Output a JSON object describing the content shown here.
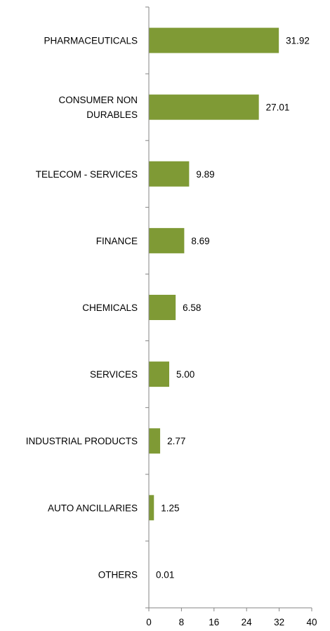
{
  "chart_data": {
    "type": "bar",
    "orientation": "horizontal",
    "categories": [
      [
        "PHARMACEUTICALS"
      ],
      [
        "CONSUMER NON",
        "DURABLES"
      ],
      [
        "TELECOM - SERVICES"
      ],
      [
        "FINANCE"
      ],
      [
        "CHEMICALS"
      ],
      [
        "SERVICES"
      ],
      [
        "INDUSTRIAL PRODUCTS"
      ],
      [
        "AUTO ANCILLARIES"
      ],
      [
        "OTHERS"
      ]
    ],
    "values": [
      31.92,
      27.01,
      9.89,
      8.69,
      6.58,
      5.0,
      2.77,
      1.25,
      0.01
    ],
    "value_labels": [
      "31.92",
      "27.01",
      "9.89",
      "8.69",
      "6.58",
      "5.00",
      "2.77",
      "1.25",
      "0.01"
    ],
    "xlim": [
      0,
      40
    ],
    "xticks": [
      "0",
      "8",
      "16",
      "24",
      "32",
      "40"
    ],
    "title": "",
    "xlabel": "",
    "ylabel": "",
    "grid": false,
    "legend": "none",
    "bar_color": "#7f9a35"
  }
}
